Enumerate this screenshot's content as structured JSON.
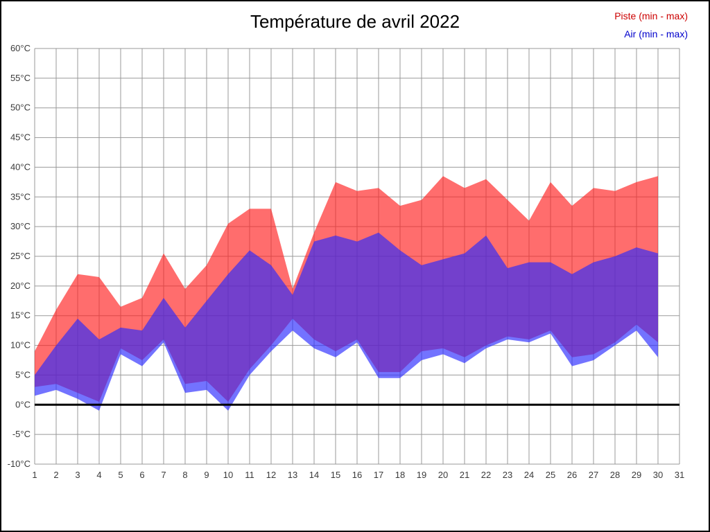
{
  "page": {
    "background_color": "#ffffff",
    "border_color": "#000000"
  },
  "chart_data": {
    "type": "area",
    "title": "Température de avril 2022",
    "xlabel": "",
    "ylabel": "",
    "xlim": [
      1,
      31
    ],
    "ylim": [
      -10,
      60
    ],
    "grid": true,
    "grid_color": "#999999",
    "zero_line_value": 0,
    "zero_line_color": "#000000",
    "legend": {
      "position": "top-right",
      "entries": [
        {
          "label": "Piste (min - max)",
          "text_color": "#cc0000"
        },
        {
          "label": "Air (min - max)",
          "text_color": "#0000cc"
        }
      ]
    },
    "x_tick_labels": [
      "1",
      "2",
      "3",
      "4",
      "5",
      "6",
      "7",
      "8",
      "9",
      "10",
      "11",
      "12",
      "13",
      "14",
      "15",
      "16",
      "17",
      "18",
      "19",
      "20",
      "21",
      "22",
      "23",
      "24",
      "25",
      "26",
      "27",
      "28",
      "29",
      "30",
      "31"
    ],
    "y_tick_values": [
      60,
      55,
      50,
      45,
      40,
      35,
      30,
      25,
      20,
      15,
      10,
      5,
      0,
      -5,
      -10
    ],
    "y_tick_labels": [
      "60°C",
      "55°C",
      "50°C",
      "45°C",
      "40°C",
      "35°C",
      "30°C",
      "25°C",
      "20°C",
      "15°C",
      "10°C",
      "5°C",
      "0°C",
      "-5°C",
      "-10°C"
    ],
    "days": [
      1,
      2,
      3,
      4,
      5,
      6,
      7,
      8,
      9,
      10,
      11,
      12,
      13,
      14,
      15,
      16,
      17,
      18,
      19,
      20,
      21,
      22,
      23,
      24,
      25,
      26,
      27,
      28,
      29,
      30
    ],
    "series": [
      {
        "name": "Piste (min - max)",
        "band": "min-max",
        "color": "#ff1e1e",
        "opacity": 0.65,
        "min": [
          3,
          3.5,
          2,
          0.5,
          9.5,
          7.5,
          11,
          3.5,
          4,
          0.5,
          6,
          10,
          14.5,
          11,
          9,
          11,
          5.5,
          5.5,
          9,
          9.5,
          8,
          10,
          11.5,
          11,
          12.5,
          8,
          8.5,
          10.5,
          13.5,
          10.5
        ],
        "max": [
          9,
          16,
          22,
          21.5,
          16.5,
          18,
          25.5,
          19.5,
          23.5,
          30.5,
          33,
          33,
          19.5,
          29,
          37.5,
          36,
          36.5,
          33.5,
          34.5,
          38.5,
          36.5,
          38,
          34.5,
          31,
          37.5,
          33.5,
          36.5,
          36,
          37.5,
          38.5
        ]
      },
      {
        "name": "Air (min - max)",
        "band": "min-max",
        "color": "#2828ff",
        "opacity": 0.65,
        "min": [
          1.5,
          2.5,
          1,
          -1,
          8.5,
          6.5,
          10.5,
          2,
          2.5,
          -1,
          5,
          9,
          12.5,
          9.5,
          8,
          10.5,
          4.5,
          4.5,
          7.5,
          8.5,
          7,
          9.5,
          11,
          10.5,
          12,
          6.5,
          7.5,
          10,
          12.5,
          8
        ],
        "max": [
          5,
          10,
          14.5,
          11,
          13,
          12.5,
          18,
          13,
          17.5,
          22,
          26,
          23.5,
          18.5,
          27.5,
          28.5,
          27.5,
          29,
          26,
          23.5,
          24.5,
          25.5,
          28.5,
          23,
          24,
          24,
          22,
          24,
          25,
          26.5,
          25.5
        ]
      }
    ]
  }
}
